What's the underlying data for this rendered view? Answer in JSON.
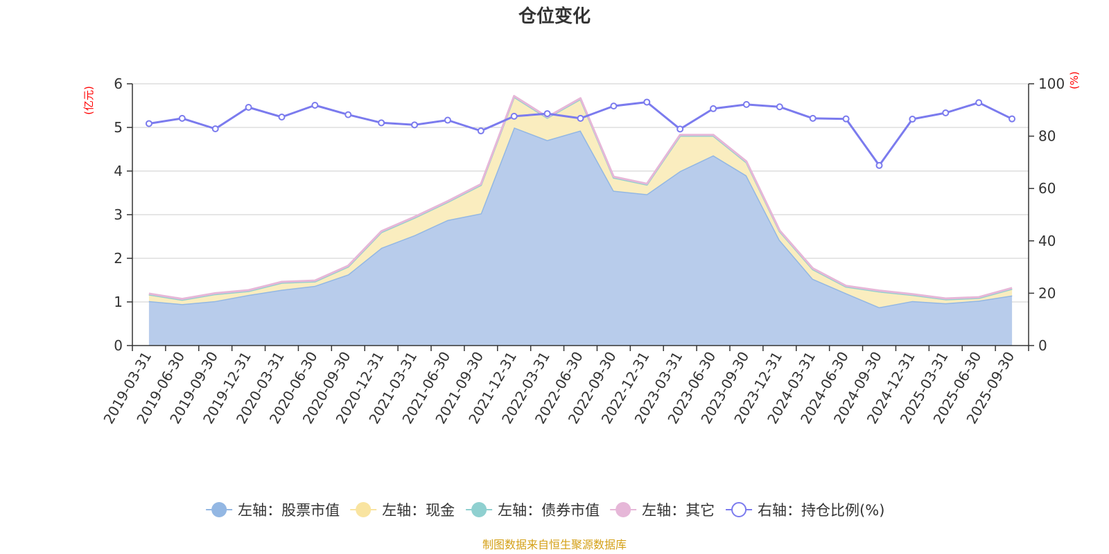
{
  "chart_data": {
    "type": "area",
    "title": "仓位变化",
    "left_unit": "(亿元)",
    "right_unit": "(%)",
    "source": "制图数据来自恒生聚源数据库",
    "categories": [
      "2019-03-31",
      "2019-06-30",
      "2019-09-30",
      "2019-12-31",
      "2020-03-31",
      "2020-06-30",
      "2020-09-30",
      "2020-12-31",
      "2021-03-31",
      "2021-06-30",
      "2021-09-30",
      "2021-12-31",
      "2022-03-31",
      "2022-06-30",
      "2022-09-30",
      "2022-12-31",
      "2023-03-31",
      "2023-06-30",
      "2023-09-30",
      "2023-12-31",
      "2024-03-31",
      "2024-06-30",
      "2024-09-30",
      "2024-12-31",
      "2025-03-31",
      "2025-06-30",
      "2025-09-30"
    ],
    "left_axis": {
      "min": 0,
      "max": 6,
      "ticks": [
        "0",
        "1",
        "2",
        "3",
        "4",
        "5",
        "6"
      ]
    },
    "right_axis": {
      "min": 0,
      "max": 100,
      "ticks": [
        "0",
        "20",
        "40",
        "60",
        "80",
        "100"
      ]
    },
    "stacked_series": [
      {
        "name": "左轴：股票市值",
        "color": "#93b7e3",
        "fill": "#b8cceb",
        "values": [
          1.02,
          0.95,
          1.02,
          1.16,
          1.28,
          1.37,
          1.63,
          2.24,
          2.53,
          2.88,
          3.03,
          5.0,
          4.71,
          4.93,
          3.55,
          3.47,
          4.0,
          4.36,
          3.9,
          2.42,
          1.53,
          1.2,
          0.88,
          1.02,
          0.97,
          1.03,
          1.15
        ]
      },
      {
        "name": "左轴：现金",
        "color": "#f9e4a0",
        "fill": "#faedbf",
        "values": [
          0.15,
          0.1,
          0.16,
          0.09,
          0.16,
          0.1,
          0.18,
          0.36,
          0.4,
          0.41,
          0.65,
          0.7,
          0.51,
          0.72,
          0.3,
          0.22,
          0.81,
          0.45,
          0.3,
          0.2,
          0.22,
          0.15,
          0.36,
          0.14,
          0.09,
          0.06,
          0.15
        ]
      },
      {
        "name": "左轴：债券市值",
        "color": "#8fd0d0",
        "fill": "#bfe5e5",
        "values": [
          0,
          0,
          0,
          0,
          0,
          0,
          0,
          0,
          0,
          0,
          0,
          0,
          0,
          0,
          0,
          0,
          0,
          0,
          0,
          0,
          0,
          0,
          0,
          0,
          0,
          0,
          0
        ]
      },
      {
        "name": "左轴：其它",
        "color": "#e6b7d8",
        "fill": "#efd0e4",
        "values": [
          0.02,
          0.02,
          0.02,
          0.02,
          0.02,
          0.02,
          0.02,
          0.02,
          0.02,
          0.02,
          0.02,
          0.02,
          0.02,
          0.02,
          0.02,
          0.02,
          0.02,
          0.02,
          0.02,
          0.02,
          0.02,
          0.02,
          0.02,
          0.02,
          0.02,
          0.02,
          0.02
        ]
      }
    ],
    "line_series": {
      "name": "右轴：持仓比例(%)",
      "axis": "right",
      "color": "#7b7bee",
      "values": [
        84.8,
        86.8,
        82.8,
        91.0,
        87.3,
        91.8,
        88.2,
        85.1,
        84.3,
        86.1,
        82.0,
        87.6,
        88.6,
        86.8,
        91.5,
        93.0,
        82.7,
        90.5,
        92.1,
        91.2,
        86.8,
        86.6,
        68.8,
        86.5,
        88.9,
        92.8,
        86.6
      ]
    },
    "legend": [
      {
        "label": "左轴：股票市值",
        "color": "#93b7e3",
        "style": "filled"
      },
      {
        "label": "左轴：现金",
        "color": "#f9e4a0",
        "style": "filled"
      },
      {
        "label": "左轴：债券市值",
        "color": "#8fd0d0",
        "style": "filled"
      },
      {
        "label": "左轴：其它",
        "color": "#e6b7d8",
        "style": "filled"
      },
      {
        "label": "右轴：持仓比例(%)",
        "color": "#7b7bee",
        "style": "hollow"
      }
    ]
  }
}
